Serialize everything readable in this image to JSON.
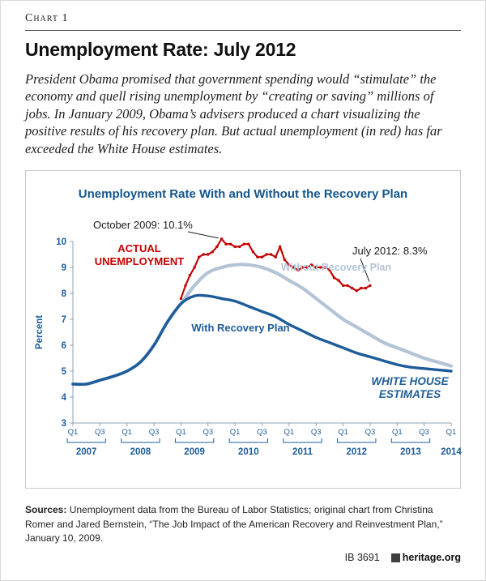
{
  "page": {
    "kicker": "Chart 1",
    "title": "Unemployment Rate: July 2012",
    "intro": "President Obama promised that government spending would “stimulate” the economy and quell rising unemployment by “creating or saving” millions of jobs. In January 2009, Obama’s advisers produced a chart visualizing the positive results of his recovery plan. But actual unemployment (in red) has far exceeded the White House estimates.",
    "footer": {
      "sources_label": "Sources:",
      "sources_text": " Unemployment data from the Bureau of Labor Statistics; original chart from Christina Romer and Jared Bernstein, “The Job Impact of the American Recovery and Reinvestment Plan,” January 10, 2009.",
      "report_id": "IB 3691",
      "site": "heritage.org"
    }
  },
  "chart_data": {
    "type": "line",
    "title": "Unemployment Rate With and Without the Recovery Plan",
    "ylabel": "Percent",
    "ylim": [
      3,
      10
    ],
    "yticks": [
      3,
      4,
      5,
      6,
      7,
      8,
      9,
      10
    ],
    "xlim_years": [
      2007,
      2014
    ],
    "grid": false,
    "legend_position": "inline-labels",
    "xticks": [
      {
        "t": 2007.0,
        "label": "Q1"
      },
      {
        "t": 2007.5,
        "label": "Q3"
      },
      {
        "t": 2008.0,
        "label": "Q1"
      },
      {
        "t": 2008.5,
        "label": "Q3"
      },
      {
        "t": 2009.0,
        "label": "Q1"
      },
      {
        "t": 2009.5,
        "label": "Q3"
      },
      {
        "t": 2010.0,
        "label": "Q1"
      },
      {
        "t": 2010.5,
        "label": "Q3"
      },
      {
        "t": 2011.0,
        "label": "Q1"
      },
      {
        "t": 2011.5,
        "label": "Q3"
      },
      {
        "t": 2012.0,
        "label": "Q1"
      },
      {
        "t": 2012.5,
        "label": "Q3"
      },
      {
        "t": 2013.0,
        "label": "Q1"
      },
      {
        "t": 2013.5,
        "label": "Q3"
      },
      {
        "t": 2014.0,
        "label": "Q1"
      }
    ],
    "year_brackets": [
      2007,
      2008,
      2009,
      2010,
      2011,
      2012,
      2013
    ],
    "final_year_label": "2014",
    "colors": {
      "actual": "#c40000",
      "without": "#b3c4d7",
      "with": "#1d5c99",
      "axis": "#8ba0b5",
      "axis_text": "#1d5c99",
      "annotation": "#1a1a1a"
    },
    "series": [
      {
        "key": "actual",
        "name": "Actual Unemployment",
        "color": "#c40000",
        "start_year": 2009,
        "interval_months": 1,
        "values": [
          7.8,
          8.3,
          8.7,
          9.0,
          9.4,
          9.5,
          9.5,
          9.6,
          9.8,
          10.1,
          9.9,
          9.9,
          9.8,
          9.8,
          9.9,
          9.9,
          9.6,
          9.4,
          9.4,
          9.5,
          9.5,
          9.4,
          9.8,
          9.3,
          9.1,
          9.0,
          8.9,
          9.0,
          9.0,
          9.1,
          9.0,
          9.0,
          9.0,
          8.9,
          8.6,
          8.5,
          8.3,
          8.3,
          8.2,
          8.1,
          8.2,
          8.2,
          8.3
        ]
      },
      {
        "key": "without_plan",
        "name": "Without Recovery Plan",
        "color": "#b3c4d7",
        "start_year": 2007,
        "interval_months": 3,
        "values": [
          4.5,
          4.5,
          4.65,
          4.8,
          5.0,
          5.35,
          6.0,
          6.9,
          7.6,
          8.3,
          8.8,
          9.0,
          9.1,
          9.1,
          9.0,
          8.8,
          8.5,
          8.2,
          7.8,
          7.4,
          7.0,
          6.7,
          6.4,
          6.1,
          5.9,
          5.7,
          5.5,
          5.35,
          5.2
        ]
      },
      {
        "key": "with_plan",
        "name": "With Recovery Plan",
        "color": "#1d5c99",
        "start_year": 2007,
        "interval_months": 3,
        "values": [
          4.5,
          4.5,
          4.65,
          4.8,
          5.0,
          5.35,
          6.0,
          6.9,
          7.6,
          7.9,
          7.9,
          7.8,
          7.7,
          7.5,
          7.3,
          7.1,
          6.8,
          6.55,
          6.3,
          6.1,
          5.9,
          5.7,
          5.55,
          5.4,
          5.25,
          5.15,
          5.1,
          5.05,
          5.0
        ]
      }
    ],
    "annotations": {
      "peak": "October 2009: 10.1%",
      "peak_point": {
        "t": 2009.75,
        "value": 10.1
      },
      "latest": "July 2012: 8.3%",
      "latest_point": {
        "t": 2012.5,
        "value": 8.3
      },
      "actual_label": [
        "ACTUAL",
        "UNEMPLOYMENT"
      ],
      "without_label": "Without Recovery Plan",
      "with_label": "With Recovery Plan",
      "estimates_label": [
        "WHITE HOUSE",
        "ESTIMATES"
      ]
    }
  }
}
